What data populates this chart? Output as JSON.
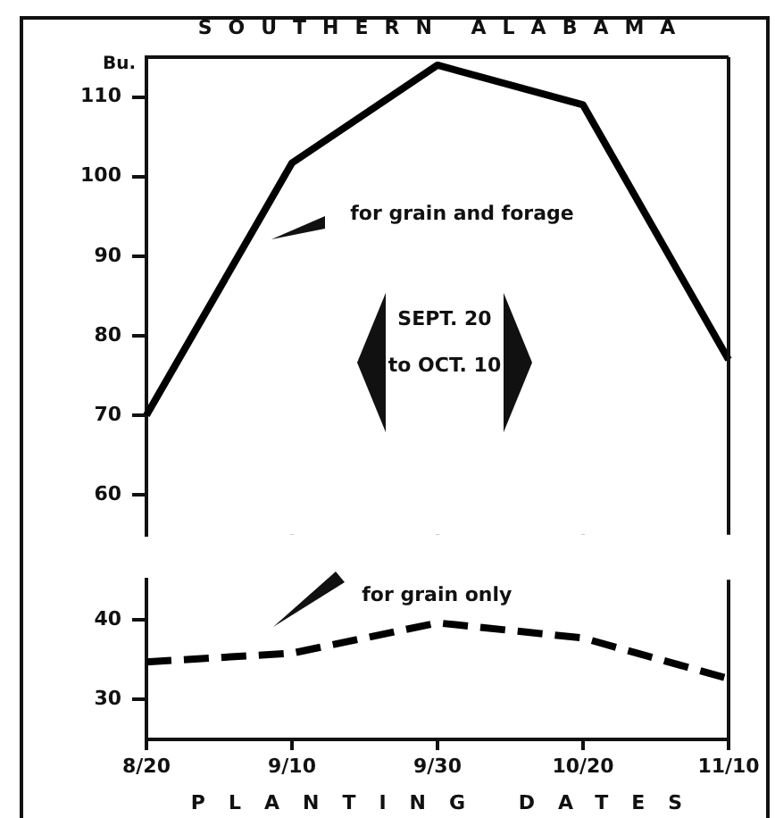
{
  "chart_data": [
    {
      "type": "line",
      "title": "SOUTHERN ALABAMA",
      "ylabel": "Bu.",
      "categories": [
        null,
        null,
        null,
        null,
        null
      ],
      "ylim": [
        55,
        115
      ],
      "yticks": [
        60,
        70,
        80,
        90,
        100,
        110
      ],
      "tick_labels": "y",
      "marker": "none",
      "annotations": [
        "SEPT. 20 to OCT. 10"
      ],
      "series": [
        {
          "name": "for grain and forage",
          "color": "#000000",
          "line_style": "solid",
          "values": [
            70,
            101.7,
            114,
            109,
            77
          ]
        }
      ]
    },
    {
      "type": "line",
      "xlabel": "PLANTING DATES",
      "categories": [
        "8/20",
        "9/10",
        "9/30",
        "10/20",
        "11/10"
      ],
      "ylim": [
        25,
        45
      ],
      "yticks": [
        30,
        40
      ],
      "marker": "none",
      "series": [
        {
          "name": "for grain only",
          "color": "#000000",
          "line_style": "dashed",
          "values": [
            34.7,
            35.8,
            39.6,
            37.7,
            32.6
          ]
        }
      ]
    }
  ]
}
